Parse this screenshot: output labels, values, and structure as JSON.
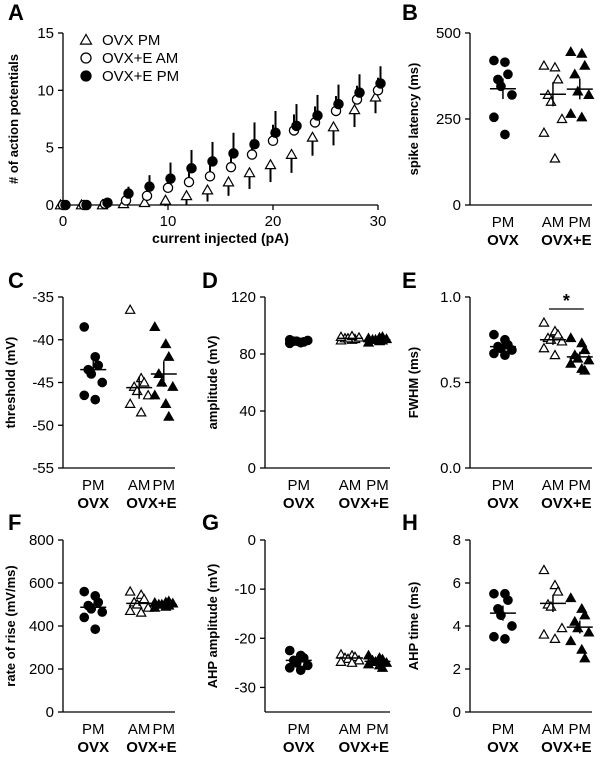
{
  "chart_data": [
    {
      "panel": "A",
      "type": "scatter",
      "title": "",
      "xlabel": "current injected (pA)",
      "ylabel": "# of action potentials",
      "xlim": [
        0,
        30
      ],
      "ylim": [
        0,
        15
      ],
      "xticks": [
        "0",
        "10",
        "20",
        "30"
      ],
      "yticks": [
        "0",
        "5",
        "10",
        "15"
      ],
      "legend": [
        "OVX PM",
        "OVX+E AM",
        "OVX+E PM"
      ],
      "x": [
        0,
        2,
        4,
        6,
        8,
        10,
        12,
        14,
        16,
        18,
        20,
        22,
        24,
        26,
        28,
        30
      ],
      "series": [
        {
          "name": "OVX PM",
          "marker": "triangle-open",
          "values": [
            0,
            0,
            0,
            0.1,
            0.2,
            0.4,
            0.8,
            1.3,
            2.0,
            2.8,
            3.5,
            4.4,
            5.9,
            6.8,
            8.3,
            9.4
          ],
          "err": [
            0,
            0,
            0,
            0.1,
            0.3,
            0.5,
            0.8,
            1.0,
            1.2,
            1.4,
            1.5,
            1.6,
            1.6,
            1.6,
            1.5,
            1.4
          ]
        },
        {
          "name": "OVX+E AM",
          "marker": "circle-open",
          "values": [
            0,
            0,
            0.1,
            0.4,
            0.8,
            1.5,
            2.0,
            2.5,
            3.3,
            4.4,
            5.6,
            6.5,
            7.2,
            8.2,
            9.2,
            10.0
          ],
          "err": [
            0,
            0,
            0.1,
            0.3,
            0.5,
            0.7,
            0.9,
            1.1,
            1.2,
            1.3,
            1.4,
            1.4,
            1.4,
            1.3,
            1.2,
            1.1
          ]
        },
        {
          "name": "OVX+E PM",
          "marker": "circle-filled",
          "values": [
            0,
            0,
            0.2,
            1.0,
            1.6,
            2.3,
            3.2,
            3.8,
            4.5,
            5.3,
            6.3,
            6.9,
            7.8,
            8.8,
            9.8,
            10.6
          ],
          "err": [
            0,
            0,
            0.2,
            0.6,
            1.0,
            1.4,
            1.6,
            1.7,
            1.8,
            1.9,
            1.9,
            1.9,
            1.8,
            1.7,
            1.6,
            1.5
          ]
        }
      ]
    },
    {
      "panel": "B",
      "type": "scatter",
      "ylabel": "spike latency (ms)",
      "ylim": [
        0,
        500
      ],
      "yticks": [
        "0",
        "250",
        "500"
      ],
      "categories": [
        "PM",
        "AM",
        "PM"
      ],
      "groups": [
        "OVX",
        "OVX+E"
      ],
      "series": [
        {
          "name": "OVX PM",
          "marker": "circle-filled",
          "mean": 338,
          "sem": 30,
          "values": [
            420,
            415,
            380,
            365,
            345,
            320,
            255,
            205
          ]
        },
        {
          "name": "OVX+E AM",
          "marker": "triangle-open",
          "mean": 322,
          "sem": 35,
          "values": [
            405,
            400,
            365,
            320,
            300,
            250,
            210,
            135
          ]
        },
        {
          "name": "OVX+E PM",
          "marker": "triangle-filled",
          "mean": 337,
          "sem": 30,
          "values": [
            445,
            440,
            405,
            380,
            330,
            320,
            265,
            255
          ]
        }
      ]
    },
    {
      "panel": "C",
      "type": "scatter",
      "ylabel": "threshold (mV)",
      "ylim": [
        -55,
        -35
      ],
      "yticks": [
        "-35",
        "-40",
        "-45",
        "-50",
        "-55"
      ],
      "categories": [
        "PM",
        "AM",
        "PM"
      ],
      "groups": [
        "OVX",
        "OVX+E"
      ],
      "series": [
        {
          "name": "OVX PM",
          "marker": "circle-filled",
          "mean": -43.5,
          "sem": 1.0,
          "values": [
            -38.5,
            -42.0,
            -43.0,
            -43.5,
            -44.0,
            -45.0,
            -46.5,
            -47.0
          ]
        },
        {
          "name": "OVX+E AM",
          "marker": "triangle-open",
          "mean": -45.6,
          "sem": 1.3,
          "values": [
            -36.5,
            -44.5,
            -45.0,
            -45.5,
            -46.0,
            -46.5,
            -47.5,
            -48.5
          ]
        },
        {
          "name": "OVX+E PM",
          "marker": "triangle-filled",
          "mean": -44.0,
          "sem": 1.5,
          "values": [
            -38.5,
            -40.5,
            -42.0,
            -44.0,
            -45.0,
            -45.5,
            -46.5,
            -47.5,
            -49.0
          ]
        }
      ]
    },
    {
      "panel": "D",
      "type": "scatter",
      "ylabel": "amplitude (mV)",
      "ylim": [
        0,
        120
      ],
      "yticks": [
        "0",
        "40",
        "80",
        "120"
      ],
      "categories": [
        "PM",
        "AM",
        "PM"
      ],
      "groups": [
        "OVX",
        "OVX+E"
      ],
      "series": [
        {
          "name": "OVX PM",
          "marker": "circle-filled",
          "mean": 89,
          "sem": 0.5,
          "values": [
            87.5,
            88,
            88.5,
            89,
            89,
            89.5,
            90,
            88
          ]
        },
        {
          "name": "OVX+E AM",
          "marker": "triangle-open",
          "mean": 91,
          "sem": 0.5,
          "values": [
            89.5,
            90,
            90.5,
            91,
            91,
            91.5,
            92,
            92.5
          ]
        },
        {
          "name": "OVX+E PM",
          "marker": "triangle-filled",
          "mean": 90,
          "sem": 0.5,
          "values": [
            88,
            89,
            89.5,
            90,
            90,
            90.5,
            91,
            91.5,
            92
          ]
        }
      ]
    },
    {
      "panel": "E",
      "type": "scatter",
      "ylabel": "FWHM (ms)",
      "ylim": [
        0,
        1.0
      ],
      "yticks": [
        "0.0",
        "0.5",
        "1.0"
      ],
      "categories": [
        "PM",
        "AM",
        "PM"
      ],
      "groups": [
        "OVX",
        "OVX+E"
      ],
      "annotation": "*",
      "series": [
        {
          "name": "OVX PM",
          "marker": "circle-filled",
          "mean": 0.71,
          "sem": 0.02,
          "values": [
            0.78,
            0.75,
            0.72,
            0.71,
            0.7,
            0.69,
            0.67,
            0.66
          ]
        },
        {
          "name": "OVX+E AM",
          "marker": "triangle-open",
          "mean": 0.75,
          "sem": 0.03,
          "values": [
            0.85,
            0.8,
            0.78,
            0.76,
            0.75,
            0.74,
            0.7,
            0.66
          ]
        },
        {
          "name": "OVX+E PM",
          "marker": "triangle-filled",
          "mean": 0.65,
          "sem": 0.03,
          "values": [
            0.76,
            0.73,
            0.69,
            0.66,
            0.64,
            0.63,
            0.61,
            0.58,
            0.57
          ]
        }
      ]
    },
    {
      "panel": "F",
      "type": "scatter",
      "ylabel": "rate of rise (mV/ms)",
      "ylim": [
        0,
        800
      ],
      "yticks": [
        "0",
        "200",
        "400",
        "600",
        "800"
      ],
      "categories": [
        "PM",
        "AM",
        "PM"
      ],
      "groups": [
        "OVX",
        "OVX+E"
      ],
      "series": [
        {
          "name": "OVX PM",
          "marker": "circle-filled",
          "mean": 487,
          "sem": 18,
          "values": [
            560,
            540,
            510,
            495,
            480,
            465,
            440,
            385
          ]
        },
        {
          "name": "OVX+E AM",
          "marker": "triangle-open",
          "mean": 505,
          "sem": 12,
          "values": [
            560,
            545,
            525,
            510,
            500,
            485,
            470,
            462
          ]
        },
        {
          "name": "OVX+E PM",
          "marker": "triangle-filled",
          "mean": 500,
          "sem": 5,
          "values": [
            485,
            490,
            495,
            500,
            500,
            505,
            508,
            510,
            515
          ]
        }
      ]
    },
    {
      "panel": "G",
      "type": "scatter",
      "ylabel": "AHP amplitude (mV)",
      "ylim": [
        -35,
        0
      ],
      "yticks": [
        "0",
        "-10",
        "-20",
        "-30"
      ],
      "categories": [
        "PM",
        "AM",
        "PM"
      ],
      "groups": [
        "OVX",
        "OVX+E"
      ],
      "series": [
        {
          "name": "OVX PM",
          "marker": "circle-filled",
          "mean": -24.5,
          "sem": 0.6,
          "values": [
            -22.5,
            -23.5,
            -24.0,
            -24.5,
            -25.0,
            -25.5,
            -26.0,
            -26.5
          ]
        },
        {
          "name": "OVX+E AM",
          "marker": "triangle-open",
          "mean": -24.0,
          "sem": 0.3,
          "values": [
            -23.3,
            -23.5,
            -23.8,
            -24.0,
            -24.2,
            -24.5,
            -24.8,
            -25.0
          ]
        },
        {
          "name": "OVX+E PM",
          "marker": "triangle-filled",
          "mean": -24.7,
          "sem": 0.3,
          "values": [
            -23.5,
            -24.0,
            -24.3,
            -24.5,
            -24.8,
            -25.0,
            -25.3,
            -25.5,
            -26.0
          ]
        }
      ]
    },
    {
      "panel": "H",
      "type": "scatter",
      "ylabel": "AHP time (ms)",
      "ylim": [
        0,
        8
      ],
      "yticks": [
        "0",
        "2",
        "4",
        "6",
        "8"
      ],
      "categories": [
        "PM",
        "AM",
        "PM"
      ],
      "groups": [
        "OVX",
        "OVX+E"
      ],
      "series": [
        {
          "name": "OVX PM",
          "marker": "circle-filled",
          "mean": 4.6,
          "sem": 0.35,
          "values": [
            5.5,
            5.5,
            5.2,
            4.8,
            4.5,
            4.0,
            3.5,
            3.4
          ]
        },
        {
          "name": "OVX+E AM",
          "marker": "triangle-open",
          "mean": 5.05,
          "sem": 0.4,
          "values": [
            6.6,
            5.9,
            5.6,
            5.0,
            4.9,
            3.9,
            3.6,
            3.4
          ]
        },
        {
          "name": "OVX+E PM",
          "marker": "triangle-filled",
          "mean": 3.95,
          "sem": 0.3,
          "values": [
            5.3,
            4.8,
            4.5,
            4.2,
            3.9,
            3.7,
            3.3,
            2.9,
            2.5
          ]
        }
      ]
    }
  ]
}
